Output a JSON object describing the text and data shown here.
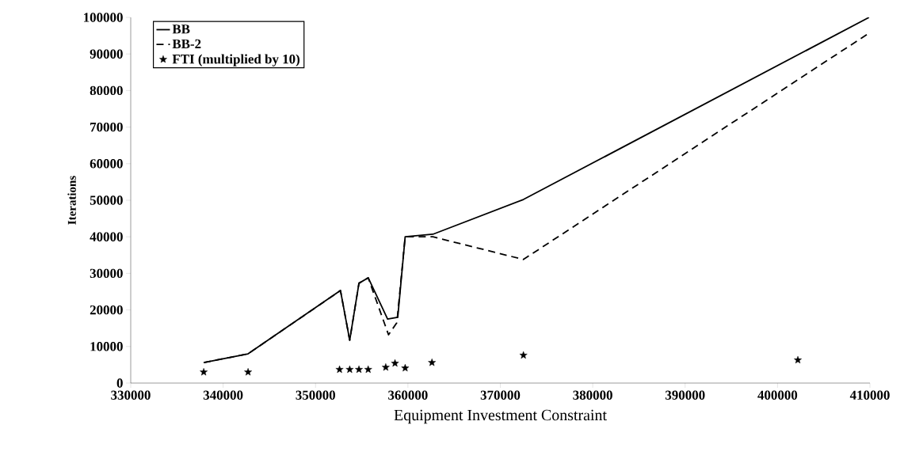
{
  "chart_data": {
    "type": "line",
    "xlabel": "Equipment Investment Constraint",
    "ylabel": "Iterations",
    "xlim": [
      330000,
      410000
    ],
    "xticks": [
      330000,
      340000,
      350000,
      360000,
      370000,
      380000,
      390000,
      400000,
      410000
    ],
    "ylim": [
      0,
      100000
    ],
    "yticks": [
      0,
      10000,
      20000,
      30000,
      40000,
      50000,
      60000,
      70000,
      80000,
      90000,
      100000
    ],
    "legend": "top left",
    "grid": false,
    "series": [
      {
        "name": "BB",
        "color": "#000000",
        "line_style": "solid",
        "x": [
          337900,
          342700,
          352700,
          353700,
          354700,
          355700,
          357800,
          358900,
          359700,
          362700,
          372500,
          409900
        ],
        "values": [
          5600,
          8000,
          25300,
          11700,
          27300,
          28800,
          17500,
          18000,
          40000,
          40700,
          50200,
          100000
        ]
      },
      {
        "name": "BB-2",
        "color": "#000000",
        "line_style": "dashed",
        "x": [
          337900,
          342700,
          352700,
          353700,
          354700,
          355700,
          357900,
          358800,
          359700,
          362700,
          372500,
          409900
        ],
        "values": [
          5600,
          8000,
          25300,
          11700,
          27300,
          28800,
          13200,
          16500,
          40000,
          40000,
          33800,
          95700
        ]
      },
      {
        "name": "FTI (multiplied by 10)",
        "color": "#000000",
        "type": "scatter",
        "marker": "star",
        "x": [
          337900,
          342700,
          352600,
          353700,
          354700,
          355700,
          357600,
          358600,
          359700,
          362600,
          372500,
          402200
        ],
        "values": [
          3000,
          3000,
          3700,
          3700,
          3700,
          3700,
          4300,
          5400,
          4100,
          5600,
          7600,
          6300
        ]
      }
    ]
  }
}
